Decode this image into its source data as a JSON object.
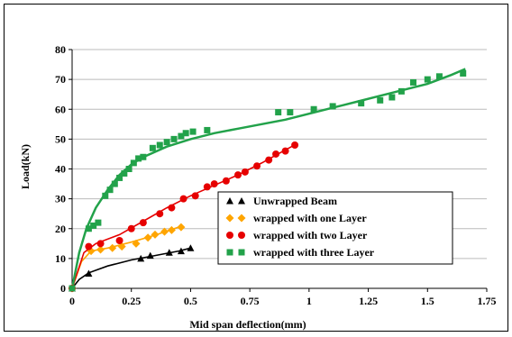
{
  "chart_data": {
    "type": "scatter",
    "title": "",
    "xlabel": "Mid span deflection(mm)",
    "ylabel": "Load(kN)",
    "xlim": [
      0,
      1.75
    ],
    "ylim": [
      0,
      80
    ],
    "x_ticks": [
      "0",
      "0.25",
      "0.5",
      "0.75",
      "1",
      "1.25",
      "1.5",
      "1.75"
    ],
    "y_ticks": [
      "0",
      "10",
      "20",
      "30",
      "40",
      "50",
      "60",
      "70",
      "80"
    ],
    "grid": "horizontal",
    "legend_position": "bottom-right",
    "series": [
      {
        "name": "Unwrapped Beam",
        "color": "#000000",
        "marker": "triangle",
        "points": [
          [
            0,
            0
          ],
          [
            0.07,
            5
          ],
          [
            0.29,
            10
          ],
          [
            0.33,
            11
          ],
          [
            0.41,
            12
          ],
          [
            0.46,
            12.5
          ],
          [
            0.5,
            13.5
          ]
        ],
        "trend": [
          [
            0,
            0
          ],
          [
            0.03,
            3
          ],
          [
            0.07,
            5.2
          ],
          [
            0.15,
            7.5
          ],
          [
            0.25,
            9.5
          ],
          [
            0.35,
            11
          ],
          [
            0.45,
            12.5
          ],
          [
            0.5,
            13.5
          ]
        ]
      },
      {
        "name": "wrapped with one Layer",
        "color": "#FFA500",
        "marker": "diamond",
        "points": [
          [
            0,
            0
          ],
          [
            0.08,
            12.5
          ],
          [
            0.12,
            13
          ],
          [
            0.17,
            13.5
          ],
          [
            0.21,
            14
          ],
          [
            0.27,
            15
          ],
          [
            0.32,
            17
          ],
          [
            0.35,
            18
          ],
          [
            0.39,
            19
          ],
          [
            0.42,
            19.5
          ],
          [
            0.46,
            20.5
          ]
        ],
        "trend": [
          [
            0,
            0
          ],
          [
            0.04,
            9
          ],
          [
            0.08,
            12.5
          ],
          [
            0.15,
            13.5
          ],
          [
            0.25,
            15.5
          ],
          [
            0.35,
            17.8
          ],
          [
            0.46,
            20.8
          ]
        ]
      },
      {
        "name": "wrapped with two Layer",
        "color": "#E60000",
        "marker": "circle",
        "points": [
          [
            0,
            0
          ],
          [
            0.07,
            14
          ],
          [
            0.12,
            15
          ],
          [
            0.2,
            16
          ],
          [
            0.25,
            20
          ],
          [
            0.3,
            22
          ],
          [
            0.37,
            25
          ],
          [
            0.42,
            27
          ],
          [
            0.47,
            30
          ],
          [
            0.52,
            31
          ],
          [
            0.57,
            34
          ],
          [
            0.6,
            35
          ],
          [
            0.65,
            36
          ],
          [
            0.7,
            38
          ],
          [
            0.73,
            39
          ],
          [
            0.78,
            41
          ],
          [
            0.83,
            43
          ],
          [
            0.86,
            45
          ],
          [
            0.9,
            46
          ],
          [
            0.94,
            48
          ]
        ],
        "trend": [
          [
            0,
            0
          ],
          [
            0.05,
            12
          ],
          [
            0.1,
            15
          ],
          [
            0.2,
            18
          ],
          [
            0.3,
            22.5
          ],
          [
            0.4,
            27
          ],
          [
            0.5,
            31
          ],
          [
            0.6,
            34.5
          ],
          [
            0.7,
            38
          ],
          [
            0.8,
            42
          ],
          [
            0.88,
            45.5
          ],
          [
            0.95,
            48.5
          ]
        ]
      },
      {
        "name": "wrapped with three Layer",
        "color": "#22A24A",
        "marker": "square",
        "points": [
          [
            0,
            0
          ],
          [
            0.07,
            20
          ],
          [
            0.09,
            21
          ],
          [
            0.11,
            22
          ],
          [
            0.14,
            31
          ],
          [
            0.16,
            33
          ],
          [
            0.18,
            35
          ],
          [
            0.2,
            37
          ],
          [
            0.22,
            38.5
          ],
          [
            0.24,
            40
          ],
          [
            0.26,
            42
          ],
          [
            0.28,
            43.5
          ],
          [
            0.3,
            44
          ],
          [
            0.34,
            47
          ],
          [
            0.37,
            48
          ],
          [
            0.4,
            49
          ],
          [
            0.43,
            50
          ],
          [
            0.46,
            51
          ],
          [
            0.48,
            52
          ],
          [
            0.51,
            52.5
          ],
          [
            0.57,
            53
          ],
          [
            0.87,
            59
          ],
          [
            0.92,
            59
          ],
          [
            1.02,
            60
          ],
          [
            1.1,
            61
          ],
          [
            1.22,
            62
          ],
          [
            1.3,
            63
          ],
          [
            1.35,
            64
          ],
          [
            1.39,
            66
          ],
          [
            1.44,
            69
          ],
          [
            1.5,
            70
          ],
          [
            1.55,
            71
          ],
          [
            1.65,
            72
          ]
        ],
        "trend": [
          [
            0,
            0
          ],
          [
            0.03,
            12
          ],
          [
            0.06,
            20
          ],
          [
            0.1,
            27
          ],
          [
            0.15,
            33
          ],
          [
            0.2,
            38
          ],
          [
            0.25,
            41.5
          ],
          [
            0.3,
            44
          ],
          [
            0.4,
            47.5
          ],
          [
            0.5,
            50
          ],
          [
            0.6,
            52
          ],
          [
            0.7,
            53.5
          ],
          [
            0.8,
            55
          ],
          [
            0.9,
            56.5
          ],
          [
            1.0,
            58.5
          ],
          [
            1.1,
            60.5
          ],
          [
            1.2,
            62.5
          ],
          [
            1.3,
            64.5
          ],
          [
            1.4,
            66.5
          ],
          [
            1.5,
            68.5
          ],
          [
            1.6,
            71.5
          ],
          [
            1.66,
            73.5
          ]
        ]
      }
    ]
  }
}
